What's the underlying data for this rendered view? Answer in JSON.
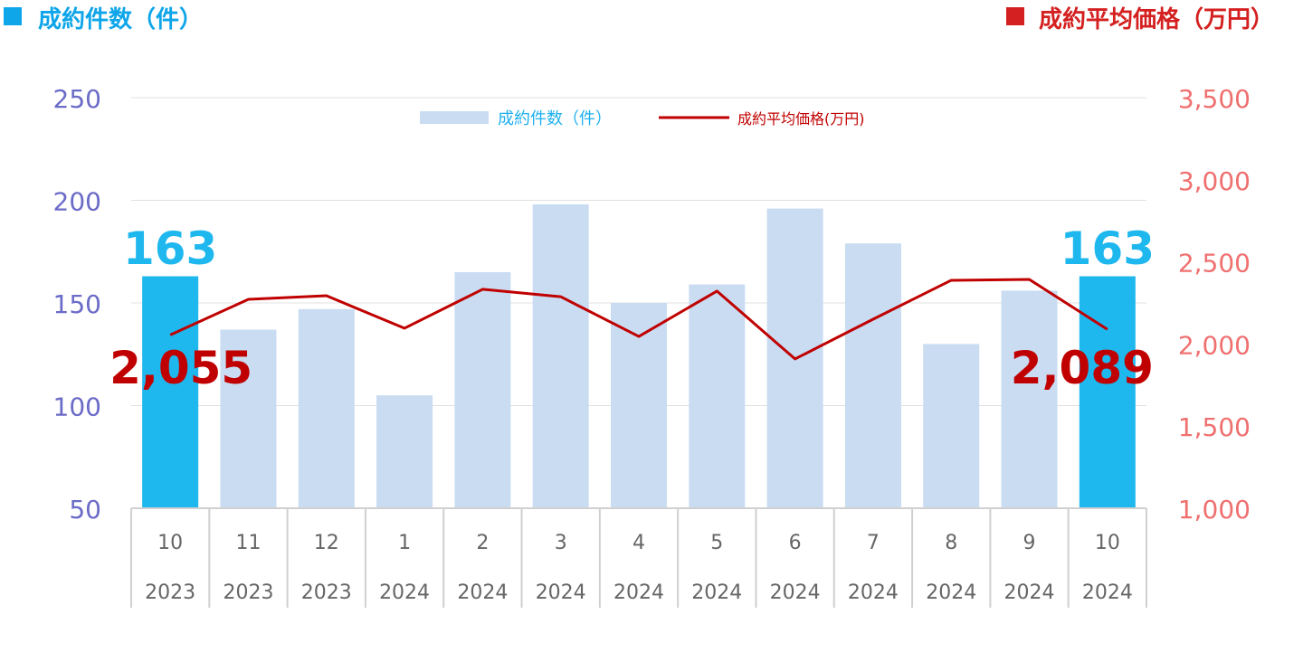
{
  "chart_data": {
    "type": "bar+line",
    "left_title": "成約件数（件）",
    "right_title": "成約平均価格（万円）",
    "legend": {
      "bar": "成約件数（件）",
      "line": "成約平均価格(万円)",
      "placement": "top-center"
    },
    "categories": [
      {
        "month": "10",
        "year": "2023"
      },
      {
        "month": "11",
        "year": "2023"
      },
      {
        "month": "12",
        "year": "2023"
      },
      {
        "month": "1",
        "year": "2024"
      },
      {
        "month": "2",
        "year": "2024"
      },
      {
        "month": "3",
        "year": "2024"
      },
      {
        "month": "4",
        "year": "2024"
      },
      {
        "month": "5",
        "year": "2024"
      },
      {
        "month": "6",
        "year": "2024"
      },
      {
        "month": "7",
        "year": "2024"
      },
      {
        "month": "8",
        "year": "2024"
      },
      {
        "month": "9",
        "year": "2024"
      },
      {
        "month": "10",
        "year": "2024"
      }
    ],
    "series": [
      {
        "name": "成約件数（件）",
        "axis": "left",
        "type": "bar",
        "values": [
          163,
          137,
          147,
          105,
          165,
          198,
          150,
          159,
          196,
          179,
          130,
          156,
          163
        ],
        "highlight": [
          0,
          12
        ]
      },
      {
        "name": "成約平均価格(万円)",
        "axis": "right",
        "type": "line",
        "values": [
          2055,
          2272,
          2294,
          2096,
          2333,
          2288,
          2046,
          2322,
          1909,
          2151,
          2388,
          2393,
          2089
        ]
      }
    ],
    "left_axis": {
      "ylim": [
        50,
        250
      ],
      "ticks": [
        "50",
        "100",
        "150",
        "200",
        "250"
      ]
    },
    "right_axis": {
      "ylim": [
        1000,
        3500
      ],
      "ticks": [
        "1,000",
        "1,500",
        "2,000",
        "2,500",
        "3,000",
        "3,500"
      ]
    },
    "annotations": {
      "bar_first": "163",
      "bar_last": "163",
      "line_first": "2,055",
      "line_last": "2,089"
    },
    "colors": {
      "bar": "#c9dcf2",
      "bar_highlight": "#1fb8ee",
      "line": "#c00000",
      "left_axis": "#6b6bc8",
      "right_axis": "#f07070",
      "left_title": "#0ea5e9",
      "right_title": "#d42020"
    },
    "grid": true
  }
}
